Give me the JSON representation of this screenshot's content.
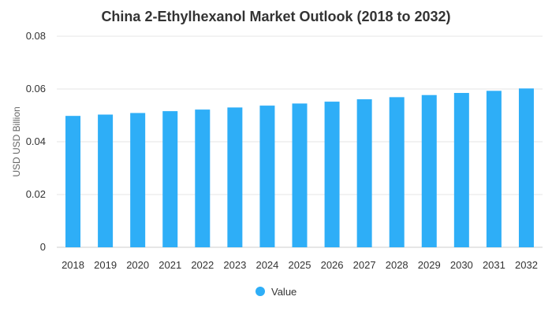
{
  "chart_data": {
    "type": "bar",
    "title": "China 2-Ethylhexanol Market Outlook (2018 to 2032)",
    "xlabel": "",
    "ylabel": "USD USD Billion",
    "categories": [
      "2018",
      "2019",
      "2020",
      "2021",
      "2022",
      "2023",
      "2024",
      "2025",
      "2026",
      "2027",
      "2028",
      "2029",
      "2030",
      "2031",
      "2032"
    ],
    "series": [
      {
        "name": "Value",
        "values": [
          0.0498,
          0.0503,
          0.0509,
          0.0516,
          0.0522,
          0.053,
          0.0537,
          0.0545,
          0.0552,
          0.0561,
          0.0569,
          0.0577,
          0.0585,
          0.0593,
          0.0602
        ],
        "color": "#2eaef7"
      }
    ],
    "ylim": [
      0,
      0.08
    ],
    "yticks": [
      "0",
      "0.02",
      "0.04",
      "0.06",
      "0.08"
    ],
    "grid": true,
    "legend_position": "bottom"
  }
}
